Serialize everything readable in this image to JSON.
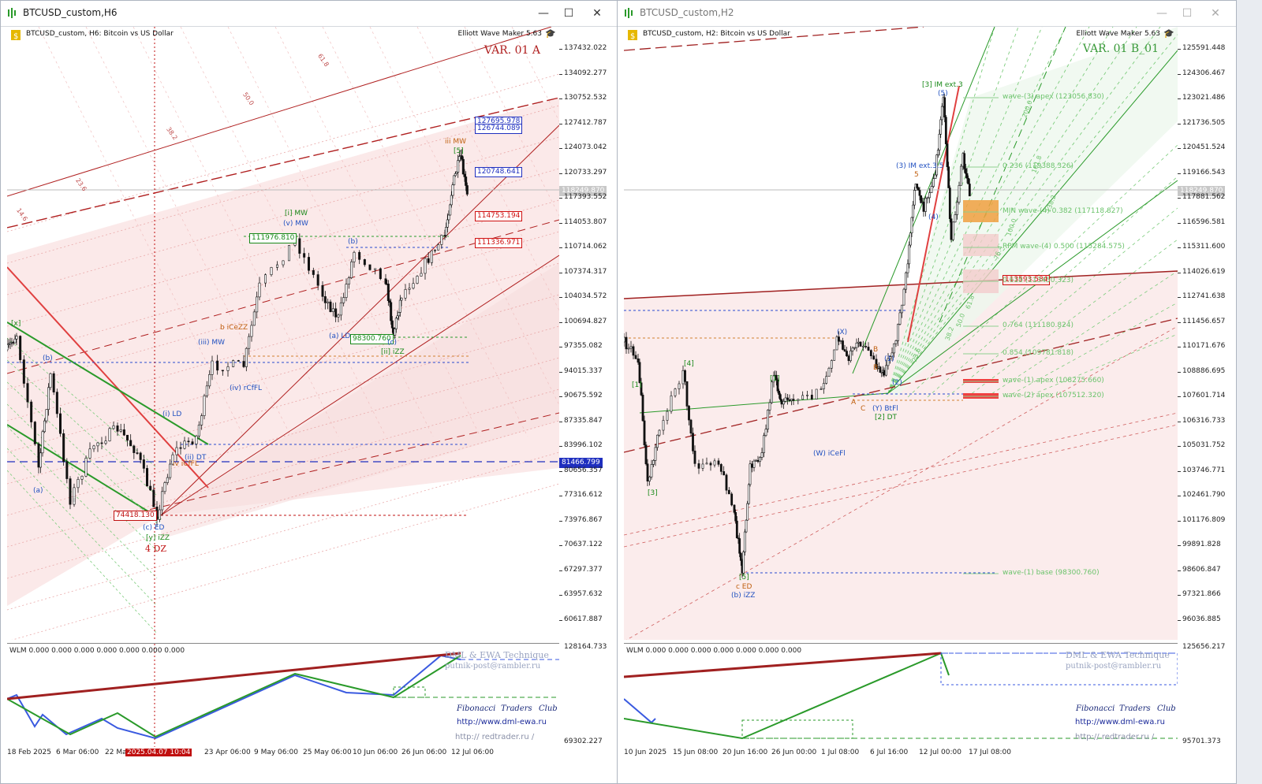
{
  "left": {
    "title": "BTCUSD_custom,H6",
    "header": "BTCUSD_custom, H6:  Bitcoin vs US Dollar",
    "indicator_name": "Elliott Wave Maker 5.63",
    "variant": "VAR. 01 A",
    "yaxis": [
      "137432.022",
      "134092.277",
      "130752.532",
      "127412.787",
      "124073.042",
      "120733.297",
      "117393.552",
      "114053.807",
      "110714.062",
      "107374.317",
      "104034.572",
      "100694.827",
      "97355.082",
      "94015.337",
      "90675.592",
      "87335.847",
      "83996.102",
      "80656.357",
      "77316.612",
      "73976.867",
      "70637.122",
      "67297.377",
      "63957.632",
      "60617.887"
    ],
    "current_price": "118249.870",
    "price_tags": [
      {
        "text": "127695.978",
        "color": "#1f2fbf"
      },
      {
        "text": "126744.089",
        "color": "#1f2fbf"
      },
      {
        "text": "120748.641",
        "color": "#1f2fbf"
      },
      {
        "text": "114753.194",
        "color": "#d01010"
      },
      {
        "text": "111336.971",
        "color": "#d01010"
      }
    ],
    "hline_tag": "81466.799",
    "in_chart_tags": [
      {
        "text": "111976.810",
        "color": "#1a8a1a"
      },
      {
        "text": "98300.760",
        "color": "#1a8a1a"
      },
      {
        "text": "74418.130",
        "color": "#c01010"
      }
    ],
    "wave_labels": [
      {
        "t": "iii MW",
        "c": "#c06010"
      },
      {
        "t": "[5]",
        "c": "#1a8a1a"
      },
      {
        "t": "[i] MW",
        "c": "#1a8a1a"
      },
      {
        "t": "(v) MW",
        "c": "#2050c0"
      },
      {
        "t": "b iCeZZ",
        "c": "#c06010"
      },
      {
        "t": "(iii) MW",
        "c": "#2050c0"
      },
      {
        "t": "(iv) rCfFL",
        "c": "#2050c0"
      },
      {
        "t": "(a) LD",
        "c": "#2050c0"
      },
      {
        "t": "(c)",
        "c": "#2050c0"
      },
      {
        "t": "[ii] iZZ",
        "c": "#1a8a1a"
      },
      {
        "t": "(b)",
        "c": "#2050c0"
      },
      {
        "t": "(i) LD",
        "c": "#2050c0"
      },
      {
        "t": "(ii) DT",
        "c": "#2050c0"
      },
      {
        "t": "iv iCfFL",
        "c": "#c06010"
      },
      {
        "t": "(c) ED",
        "c": "#2050c0"
      },
      {
        "t": "[y] iZZ",
        "c": "#1a8a1a"
      },
      {
        "t": "4 DZ",
        "c": "#c01010"
      },
      {
        "t": "(a)",
        "c": "#2050c0"
      },
      {
        "t": "(b)",
        "c": "#2050c0"
      },
      {
        "t": "[x]",
        "c": "#1a8a1a"
      },
      {
        "t": "iii",
        "c": "#333"
      }
    ],
    "xaxis": [
      "18 Feb 2025",
      "6 Mar 06:00",
      "22 Ma",
      "2025.04.07 10:04",
      "23 Apr 06:00",
      "9 May 06:00",
      "25 May 06:00",
      "10 Jun 06:00",
      "26 Jun 06:00",
      "12 Jul 06:00"
    ],
    "indicator": {
      "label": "WLM 0.000 0.000 0.000 0.000 0.000 0.000 0.000",
      "y_top": "128164.733",
      "y_bottom": "69302.227",
      "watermark1": "DML & EWA Technique",
      "watermark2": "putnik-post@rambler.ru",
      "club": [
        "Fibonacci",
        "Traders",
        "Club"
      ],
      "url1": "http://www.dml-ewa.ru",
      "url2": "http:// redtrader.ru /"
    },
    "grid_labels": [
      "61.8",
      "50.0",
      "38.2",
      "23.6",
      "14.6"
    ]
  },
  "right": {
    "title": "BTCUSD_custom,H2",
    "header": "BTCUSD_custom, H2:  Bitcoin vs US Dollar",
    "indicator_name": "Elliott Wave Maker 5.63",
    "variant": "VAR. 01 B_01",
    "yaxis": [
      "125591.448",
      "124306.467",
      "123021.486",
      "121736.505",
      "120451.524",
      "119166.543",
      "117881.562",
      "116596.581",
      "115311.600",
      "114026.619",
      "112741.638",
      "111456.657",
      "110171.676",
      "108886.695",
      "107601.714",
      "106316.733",
      "105031.752",
      "103746.771",
      "102461.790",
      "101176.809",
      "99891.828",
      "98606.847",
      "97321.866",
      "96036.885"
    ],
    "current_price": "118249.870",
    "hline_tag": "113593.584",
    "fib_labels": [
      {
        "t": "wave-(3) apex (123056.830)",
        "c": "#6cc36c"
      },
      {
        "t": "0.236 (119388.326)",
        "c": "#6cc36c"
      },
      {
        "t": "MIN wave-(4) 0.382 (117118.827)",
        "c": "#6cc36c"
      },
      {
        "t": "RPM wave-(4) 0.500 (115284.575)",
        "c": "#6cc36c"
      },
      {
        "t": "0.618 (113450.323)",
        "c": "#6cc36c"
      },
      {
        "t": "0.764 (111180.824)",
        "c": "#6cc36c"
      },
      {
        "t": "0.854 (109781.818)",
        "c": "#6cc36c"
      },
      {
        "t": "wave-(1) apex (108275.660)",
        "c": "#6cc36c"
      },
      {
        "t": "wave-(2) apex (107512.320)",
        "c": "#6cc36c"
      },
      {
        "t": "wave-(1) base (98300.760)",
        "c": "#6cc36c"
      }
    ],
    "wave_labels": [
      {
        "t": "[3] IM ext.3",
        "c": "#1a8a1a"
      },
      {
        "t": "(5)",
        "c": "#2050c0"
      },
      {
        "t": "(3) IM ext.3.5",
        "c": "#2050c0"
      },
      {
        "t": "5",
        "c": "#c06010"
      },
      {
        "t": "(4)",
        "c": "#2050c0"
      },
      {
        "t": "[4]",
        "c": "#1a8a1a"
      },
      {
        "t": "[1]",
        "c": "#1a8a1a"
      },
      {
        "t": "[3]",
        "c": "#1a8a1a"
      },
      {
        "t": "[5]",
        "c": "#1a8a1a"
      },
      {
        "t": "c ED",
        "c": "#c06010"
      },
      {
        "t": "(b) iZZ",
        "c": "#2050c0"
      },
      {
        "t": "[1]",
        "c": "#1a8a1a"
      },
      {
        "t": "B",
        "c": "#c06010"
      },
      {
        "t": "A",
        "c": "#c06010"
      },
      {
        "t": "(X)",
        "c": "#2050c0"
      },
      {
        "t": "(W) iCeFl",
        "c": "#2050c0"
      },
      {
        "t": "(Y) BtFl",
        "c": "#2050c0"
      },
      {
        "t": "[2] DT",
        "c": "#1a8a1a"
      },
      {
        "t": "(1)",
        "c": "#2050c0"
      },
      {
        "t": "(2)",
        "c": "#2050c0"
      },
      {
        "t": "B",
        "c": "#c06010"
      },
      {
        "t": "C",
        "c": "#c06010"
      }
    ],
    "grid_labels": [
      "200.0",
      "161.8",
      "138.2",
      "100.0",
      "76.4",
      "61.8",
      "50.0",
      "38.2",
      "23.6"
    ],
    "xaxis": [
      "10 Jun 2025",
      "15 Jun 08:00",
      "20 Jun 16:00",
      "26 Jun 00:00",
      "1 Jul 08:00",
      "6 Jul 16:00",
      "12 Jul 00:00",
      "17 Jul 08:00"
    ],
    "indicator": {
      "label": "WLM 0.000 0.000 0.000 0.000 0.000 0.000 0.000",
      "y_top": "125656.217",
      "y_bottom": "95701.373",
      "watermark1": "DML & EWA Technique",
      "watermark2": "putnik-post@rambler.ru",
      "club": [
        "Fibonacci",
        "Traders",
        "Club"
      ],
      "url1": "http://www.dml-ewa.ru",
      "url2": "http:// redtrader.ru /"
    }
  },
  "colors": {
    "bull_channel": "#b02020",
    "green_channel": "#2a9a2a",
    "blue_line": "#1f2fbf",
    "fib_green": "#6cc36c",
    "orange_zone": "#f0a040",
    "pink_zone": "#f7dede"
  }
}
